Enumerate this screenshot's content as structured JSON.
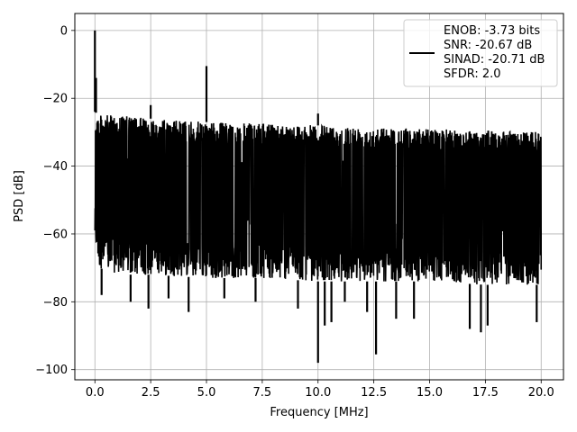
{
  "chart_data": {
    "type": "line",
    "title": "",
    "xlabel": "Frequency [MHz]",
    "ylabel": "PSD [dB]",
    "xlim": [
      -0.9,
      21.0
    ],
    "ylim": [
      -103,
      5
    ],
    "xticks": [
      0.0,
      2.5,
      5.0,
      7.5,
      10.0,
      12.5,
      15.0,
      17.5,
      20.0
    ],
    "xtick_labels": [
      "0.0",
      "2.5",
      "5.0",
      "7.5",
      "10.0",
      "12.5",
      "15.0",
      "17.5",
      "20.0"
    ],
    "yticks": [
      0,
      -20,
      -40,
      -60,
      -80,
      -100
    ],
    "ytick_labels": [
      "0",
      "−20",
      "−40",
      "−60",
      "−80",
      "−100"
    ],
    "grid": true,
    "legend": {
      "placement": "top-right",
      "lines": [
        "ENOB: -3.73 bits",
        "SNR: -20.67 dB",
        "SINAD: -20.71 dB",
        "SFDR: 2.0"
      ]
    },
    "series": [
      {
        "color": "#000000",
        "noise_band": {
          "x": [
            0.0,
            0.2,
            1.0,
            2.5,
            5.0,
            7.5,
            10.0,
            12.5,
            15.0,
            17.5,
            20.0
          ],
          "upper": [
            -24,
            -25,
            -25,
            -26,
            -27,
            -27.5,
            -28,
            -28.5,
            -29,
            -29.5,
            -30
          ],
          "lower": [
            -62,
            -70,
            -72,
            -72,
            -73,
            -73,
            -74,
            -74,
            -74,
            -75,
            -75
          ]
        },
        "peaks": [
          {
            "x": 0.0,
            "y": 0
          },
          {
            "x": 0.05,
            "y": -14
          },
          {
            "x": 2.5,
            "y": -22
          },
          {
            "x": 5.0,
            "y": -10.5
          },
          {
            "x": 10.0,
            "y": -24.5
          }
        ],
        "troughs": [
          {
            "x": 0.3,
            "y": -78
          },
          {
            "x": 1.6,
            "y": -80
          },
          {
            "x": 2.4,
            "y": -82
          },
          {
            "x": 3.3,
            "y": -79
          },
          {
            "x": 4.2,
            "y": -83
          },
          {
            "x": 5.8,
            "y": -79
          },
          {
            "x": 7.2,
            "y": -80
          },
          {
            "x": 9.1,
            "y": -82
          },
          {
            "x": 10.0,
            "y": -98
          },
          {
            "x": 10.3,
            "y": -87
          },
          {
            "x": 10.6,
            "y": -86
          },
          {
            "x": 11.2,
            "y": -80
          },
          {
            "x": 12.2,
            "y": -83
          },
          {
            "x": 12.6,
            "y": -95.5
          },
          {
            "x": 13.5,
            "y": -85
          },
          {
            "x": 14.3,
            "y": -85
          },
          {
            "x": 16.8,
            "y": -88
          },
          {
            "x": 17.3,
            "y": -89
          },
          {
            "x": 17.6,
            "y": -87
          },
          {
            "x": 19.8,
            "y": -86
          }
        ]
      }
    ]
  }
}
